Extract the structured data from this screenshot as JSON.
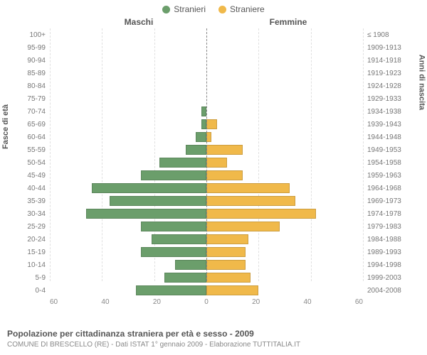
{
  "legend": {
    "male_label": "Stranieri",
    "female_label": "Straniere",
    "male_color": "#6b9e6b",
    "female_color": "#f0b94a"
  },
  "column_headers": {
    "male": "Maschi",
    "female": "Femmine"
  },
  "axis_titles": {
    "left": "Fasce di età",
    "right": "Anni di nascita"
  },
  "x_axis": {
    "max": 60,
    "ticks": [
      60,
      40,
      20,
      0,
      20,
      40,
      60
    ],
    "grid_positions_pct": [
      0,
      33.333,
      66.667,
      100,
      133.333,
      166.667,
      200
    ]
  },
  "rows": [
    {
      "age": "100+",
      "birth": "≤ 1908",
      "m": 0,
      "f": 0
    },
    {
      "age": "95-99",
      "birth": "1909-1913",
      "m": 0,
      "f": 0
    },
    {
      "age": "90-94",
      "birth": "1914-1918",
      "m": 0,
      "f": 0
    },
    {
      "age": "85-89",
      "birth": "1919-1923",
      "m": 0,
      "f": 0
    },
    {
      "age": "80-84",
      "birth": "1924-1928",
      "m": 0,
      "f": 0
    },
    {
      "age": "75-79",
      "birth": "1929-1933",
      "m": 0,
      "f": 0
    },
    {
      "age": "70-74",
      "birth": "1934-1938",
      "m": 2,
      "f": 0
    },
    {
      "age": "65-69",
      "birth": "1939-1943",
      "m": 2,
      "f": 4
    },
    {
      "age": "60-64",
      "birth": "1944-1948",
      "m": 4,
      "f": 2
    },
    {
      "age": "55-59",
      "birth": "1949-1953",
      "m": 8,
      "f": 14
    },
    {
      "age": "50-54",
      "birth": "1954-1958",
      "m": 18,
      "f": 8
    },
    {
      "age": "45-49",
      "birth": "1959-1963",
      "m": 25,
      "f": 14
    },
    {
      "age": "40-44",
      "birth": "1964-1968",
      "m": 44,
      "f": 32
    },
    {
      "age": "35-39",
      "birth": "1969-1973",
      "m": 37,
      "f": 34
    },
    {
      "age": "30-34",
      "birth": "1974-1978",
      "m": 46,
      "f": 42
    },
    {
      "age": "25-29",
      "birth": "1979-1983",
      "m": 25,
      "f": 28
    },
    {
      "age": "20-24",
      "birth": "1984-1988",
      "m": 21,
      "f": 16
    },
    {
      "age": "15-19",
      "birth": "1989-1993",
      "m": 25,
      "f": 15
    },
    {
      "age": "10-14",
      "birth": "1994-1998",
      "m": 12,
      "f": 15
    },
    {
      "age": "5-9",
      "birth": "1999-2003",
      "m": 16,
      "f": 17
    },
    {
      "age": "0-4",
      "birth": "2004-2008",
      "m": 27,
      "f": 20
    }
  ],
  "footer": {
    "title": "Popolazione per cittadinanza straniera per età e sesso - 2009",
    "subtitle": "COMUNE DI BRESCELLO (RE) - Dati ISTAT 1° gennaio 2009 - Elaborazione TUTTITALIA.IT"
  },
  "colors": {
    "grid": "#e0e0e0",
    "center_line": "#888888",
    "background": "#ffffff"
  }
}
